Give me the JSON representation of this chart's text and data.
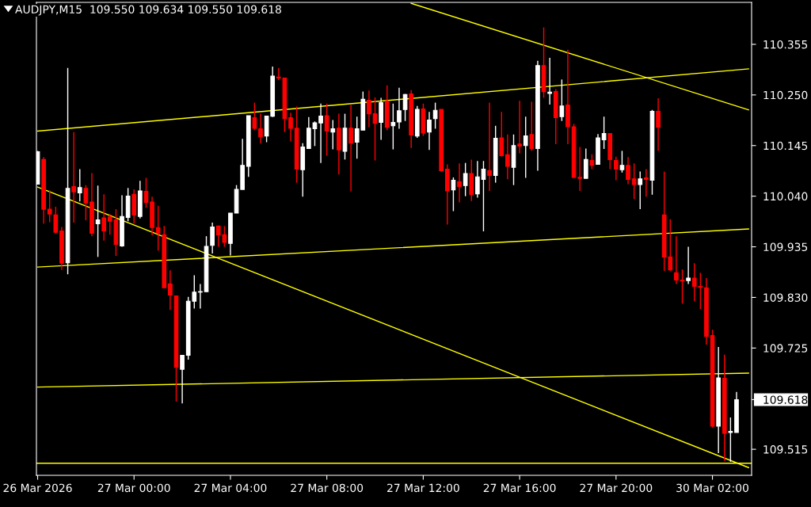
{
  "chart_data": {
    "type": "candlestick",
    "title": "AUDJPY,M15  109.550 109.634 109.550 109.618",
    "categories": [
      "26 Mar 2026",
      null,
      null,
      null,
      null,
      null,
      null,
      null,
      null,
      null,
      null,
      null,
      null,
      null,
      null,
      null,
      "27 Mar 00:00",
      null,
      null,
      null,
      null,
      null,
      null,
      null,
      null,
      null,
      null,
      null,
      null,
      null,
      null,
      null,
      "27 Mar 04:00",
      null,
      null,
      null,
      null,
      null,
      null,
      null,
      null,
      null,
      null,
      null,
      null,
      null,
      null,
      null,
      "27 Mar 08:00",
      null,
      null,
      null,
      null,
      null,
      null,
      null,
      null,
      null,
      null,
      null,
      null,
      null,
      null,
      null,
      "27 Mar 12:00",
      null,
      null,
      null,
      null,
      null,
      null,
      null,
      null,
      null,
      null,
      null,
      null,
      null,
      null,
      null,
      "27 Mar 16:00",
      null,
      null,
      null,
      null,
      null,
      null,
      null,
      null,
      null,
      null,
      null,
      null,
      null,
      null,
      null,
      "27 Mar 20:00",
      null,
      null,
      null,
      null,
      null,
      null,
      null,
      null,
      null,
      null,
      null,
      null,
      null,
      null,
      null,
      "30 Mar 02:00",
      null,
      null,
      null,
      null,
      null,
      null
    ],
    "ohlc": [
      [
        110.065,
        110.134,
        110.065,
        110.132
      ],
      [
        110.116,
        110.121,
        109.983,
        110.013
      ],
      [
        110.013,
        110.052,
        109.986,
        110.003
      ],
      [
        110.001,
        110.018,
        109.963,
        109.965
      ],
      [
        109.968,
        109.976,
        109.887,
        109.901
      ],
      [
        109.902,
        110.306,
        109.878,
        110.056
      ],
      [
        110.06,
        110.173,
        109.985,
        110.049
      ],
      [
        110.047,
        110.096,
        110.029,
        110.058
      ],
      [
        110.056,
        110.063,
        109.99,
        110.026
      ],
      [
        110.028,
        110.088,
        109.957,
        109.963
      ],
      [
        109.983,
        110.062,
        109.914,
        109.991
      ],
      [
        109.995,
        110.044,
        109.948,
        109.968
      ],
      [
        109.997,
        110.003,
        109.96,
        109.988
      ],
      [
        109.991,
        110.013,
        109.916,
        109.94
      ],
      [
        109.937,
        110.042,
        109.935,
        109.998
      ],
      [
        109.996,
        110.057,
        109.988,
        110.04
      ],
      [
        110.044,
        110.054,
        109.983,
        110.001
      ],
      [
        109.998,
        110.072,
        109.994,
        110.051
      ],
      [
        110.05,
        110.078,
        110.016,
        110.027
      ],
      [
        110.028,
        110.039,
        109.959,
        109.975
      ],
      [
        109.975,
        110.02,
        109.927,
        109.963
      ],
      [
        109.96,
        109.978,
        109.85,
        109.85
      ],
      [
        109.858,
        109.886,
        109.804,
        109.835
      ],
      [
        109.833,
        109.833,
        109.614,
        109.685
      ],
      [
        109.681,
        109.71,
        109.61,
        109.71
      ],
      [
        109.71,
        109.831,
        109.701,
        109.822
      ],
      [
        109.822,
        109.876,
        109.807,
        109.841
      ],
      [
        109.841,
        109.858,
        109.807,
        109.842
      ],
      [
        109.842,
        109.957,
        109.842,
        109.936
      ],
      [
        109.938,
        109.985,
        109.921,
        109.976
      ],
      [
        109.978,
        109.978,
        109.935,
        109.96
      ],
      [
        109.96,
        109.978,
        109.935,
        109.944
      ],
      [
        109.942,
        110.005,
        109.917,
        110.005
      ],
      [
        110.005,
        110.063,
        110.005,
        110.054
      ],
      [
        110.054,
        110.159,
        110.054,
        110.104
      ],
      [
        110.102,
        110.207,
        110.08,
        110.207
      ],
      [
        110.203,
        110.234,
        110.177,
        110.181
      ],
      [
        110.18,
        110.211,
        110.149,
        110.163
      ],
      [
        110.165,
        110.207,
        110.152,
        110.206
      ],
      [
        110.206,
        110.309,
        110.204,
        110.289
      ],
      [
        110.287,
        110.306,
        110.281,
        110.285
      ],
      [
        110.285,
        110.285,
        110.173,
        110.201
      ],
      [
        110.203,
        110.213,
        110.154,
        110.181
      ],
      [
        110.181,
        110.226,
        110.068,
        110.096
      ],
      [
        110.095,
        110.15,
        110.039,
        110.142
      ],
      [
        110.139,
        110.204,
        110.139,
        110.181
      ],
      [
        110.18,
        110.195,
        110.144,
        110.192
      ],
      [
        110.192,
        110.232,
        110.109,
        110.206
      ],
      [
        110.207,
        110.232,
        110.124,
        110.175
      ],
      [
        110.173,
        110.198,
        110.137,
        110.18
      ],
      [
        110.181,
        110.211,
        110.085,
        110.136
      ],
      [
        110.133,
        110.211,
        110.116,
        110.181
      ],
      [
        110.181,
        110.229,
        110.05,
        110.15
      ],
      [
        110.152,
        110.205,
        110.118,
        110.18
      ],
      [
        110.177,
        110.257,
        110.177,
        110.241
      ],
      [
        110.239,
        110.259,
        110.183,
        110.211
      ],
      [
        110.211,
        110.245,
        110.114,
        110.191
      ],
      [
        110.193,
        110.244,
        110.157,
        110.234
      ],
      [
        110.237,
        110.27,
        110.177,
        110.183
      ],
      [
        110.186,
        110.232,
        110.137,
        110.193
      ],
      [
        110.194,
        110.265,
        110.18,
        110.217
      ],
      [
        110.22,
        110.252,
        110.196,
        110.251
      ],
      [
        110.252,
        110.26,
        110.14,
        110.167
      ],
      [
        110.165,
        110.227,
        110.161,
        110.22
      ],
      [
        110.221,
        110.232,
        110.165,
        110.171
      ],
      [
        110.173,
        110.215,
        110.136,
        110.198
      ],
      [
        110.201,
        110.234,
        110.18,
        110.218
      ],
      [
        110.22,
        110.22,
        110.091,
        110.093
      ],
      [
        110.096,
        110.106,
        109.981,
        110.051
      ],
      [
        110.053,
        110.079,
        110.009,
        110.073
      ],
      [
        110.07,
        110.108,
        110.027,
        110.06
      ],
      [
        110.062,
        110.109,
        110.04,
        110.087
      ],
      [
        110.087,
        110.116,
        110.03,
        110.043
      ],
      [
        110.045,
        110.113,
        110.037,
        110.08
      ],
      [
        110.075,
        110.113,
        109.967,
        110.096
      ],
      [
        110.093,
        110.234,
        110.051,
        110.083
      ],
      [
        110.083,
        110.186,
        110.068,
        110.16
      ],
      [
        110.161,
        110.215,
        110.122,
        110.124
      ],
      [
        110.126,
        110.168,
        110.075,
        110.102
      ],
      [
        110.1,
        110.168,
        110.063,
        110.145
      ],
      [
        110.148,
        110.238,
        110.129,
        110.144
      ],
      [
        110.145,
        110.205,
        110.078,
        110.165
      ],
      [
        110.168,
        110.236,
        110.134,
        110.139
      ],
      [
        110.139,
        110.321,
        110.093,
        110.311
      ],
      [
        110.311,
        110.39,
        110.244,
        110.257
      ],
      [
        110.253,
        110.327,
        110.23,
        110.256
      ],
      [
        110.257,
        110.262,
        110.148,
        110.203
      ],
      [
        110.205,
        110.282,
        110.196,
        110.227
      ],
      [
        110.229,
        110.344,
        110.148,
        110.184
      ],
      [
        110.184,
        110.19,
        110.078,
        110.079
      ],
      [
        110.079,
        110.142,
        110.051,
        110.077
      ],
      [
        110.077,
        110.139,
        110.077,
        110.116
      ],
      [
        110.114,
        110.127,
        110.096,
        110.104
      ],
      [
        110.106,
        110.169,
        110.106,
        110.161
      ],
      [
        110.157,
        110.205,
        110.138,
        110.17
      ],
      [
        110.17,
        110.17,
        110.096,
        110.116
      ],
      [
        110.114,
        110.122,
        110.073,
        110.096
      ],
      [
        110.095,
        110.134,
        110.089,
        110.104
      ],
      [
        110.104,
        110.121,
        110.065,
        110.075
      ],
      [
        110.076,
        110.108,
        110.034,
        110.064
      ],
      [
        110.064,
        110.091,
        110.013,
        110.076
      ],
      [
        110.078,
        110.096,
        110.039,
        110.075
      ],
      [
        110.073,
        110.219,
        110.043,
        110.216
      ],
      [
        110.216,
        110.243,
        110.134,
        110.183
      ],
      [
        110.001,
        110.091,
        109.885,
        109.914
      ],
      [
        109.914,
        109.992,
        109.885,
        109.887
      ],
      [
        109.881,
        109.957,
        109.858,
        109.866
      ],
      [
        109.866,
        109.888,
        109.817,
        109.864
      ],
      [
        109.865,
        109.935,
        109.858,
        109.87
      ],
      [
        109.87,
        109.901,
        109.822,
        109.853
      ],
      [
        109.853,
        109.881,
        109.806,
        109.851
      ],
      [
        109.85,
        109.87,
        109.732,
        109.749
      ],
      [
        109.751,
        109.763,
        109.56,
        109.563
      ],
      [
        109.563,
        109.727,
        109.507,
        109.663
      ],
      [
        109.662,
        109.711,
        109.491,
        109.548
      ],
      [
        109.55,
        109.581,
        109.489,
        109.552
      ],
      [
        109.55,
        109.634,
        109.55,
        109.618
      ],
      null,
      null
    ],
    "colors": [
      "#ffffff",
      "#ff0000",
      "#ff0000",
      "#ff0000",
      "#ff0000",
      "#ffffff",
      "#ff0000",
      "#ffffff",
      "#ff0000",
      "#ff0000",
      "#ffffff",
      "#ff0000",
      "#ff0000",
      "#ff0000",
      "#ffffff",
      "#ffffff",
      "#ff0000",
      "#ffffff",
      "#ff0000",
      "#ff0000",
      "#ff0000",
      "#ff0000",
      "#ff0000",
      "#ff0000",
      "#ffffff",
      "#ffffff",
      "#ffffff",
      "#ffffff",
      "#ffffff",
      "#ffffff",
      "#ff0000",
      "#ff0000",
      "#ffffff",
      "#ffffff",
      "#ffffff",
      "#ffffff",
      "#ff0000",
      "#ff0000",
      "#ffffff",
      "#ffffff",
      "#ff0000",
      "#ff0000",
      "#ff0000",
      "#ff0000",
      "#ffffff",
      "#ffffff",
      "#ffffff",
      "#ffffff",
      "#ff0000",
      "#ffffff",
      "#ff0000",
      "#ffffff",
      "#ff0000",
      "#ffffff",
      "#ffffff",
      "#ff0000",
      "#ff0000",
      "#ffffff",
      "#ff0000",
      "#ffffff",
      "#ffffff",
      "#ffffff",
      "#ff0000",
      "#ffffff",
      "#ff0000",
      "#ffffff",
      "#ffffff",
      "#ff0000",
      "#ff0000",
      "#ffffff",
      "#ff0000",
      "#ffffff",
      "#ff0000",
      "#ffffff",
      "#ffffff",
      "#ff0000",
      "#ffffff",
      "#ff0000",
      "#ff0000",
      "#ffffff",
      "#ff0000",
      "#ffffff",
      "#ff0000",
      "#ffffff",
      "#ff0000",
      "#ffffff",
      "#ff0000",
      "#ffffff",
      "#ff0000",
      "#ff0000",
      "#ff0000",
      "#ffffff",
      "#ff0000",
      "#ffffff",
      "#ffffff",
      "#ff0000",
      "#ff0000",
      "#ffffff",
      "#ff0000",
      "#ff0000",
      "#ffffff",
      "#ff0000",
      "#ffffff",
      "#ff0000",
      "#ff0000",
      "#ff0000",
      "#ff0000",
      "#ff0000",
      "#ffffff",
      "#ff0000",
      "#ff0000",
      "#ff0000",
      "#ff0000",
      "#ffffff",
      "#ff0000",
      "#ffffff",
      "#ffffff",
      null,
      null
    ],
    "series": [
      {
        "type": "line",
        "color": "#ffff00",
        "values": [
          110.175,
          null,
          null,
          null,
          null,
          null,
          null,
          null,
          null,
          null,
          null,
          null,
          null,
          null,
          null,
          null,
          null,
          null,
          null,
          null,
          null,
          null,
          null,
          null,
          null,
          null,
          null,
          null,
          null,
          null,
          null,
          null,
          null,
          null,
          null,
          null,
          null,
          null,
          null,
          null,
          null,
          null,
          null,
          null,
          null,
          null,
          null,
          null,
          null,
          null,
          null,
          null,
          null,
          null,
          null,
          null,
          null,
          null,
          null,
          null,
          null,
          null,
          null,
          null,
          null,
          null,
          null,
          null,
          null,
          null,
          null,
          null,
          null,
          null,
          null,
          null,
          null,
          null,
          null,
          null,
          null,
          null,
          null,
          null,
          null,
          null,
          null,
          null,
          null,
          null,
          null,
          null,
          null,
          null,
          null,
          null,
          null,
          null,
          null,
          null,
          null,
          null,
          null,
          null,
          null,
          null,
          null,
          null,
          null,
          null,
          null,
          null,
          null,
          null,
          null,
          null,
          null,
          null,
          110.304
        ]
      },
      {
        "type": "line",
        "color": "#ffff00",
        "values": [
          null,
          null,
          null,
          null,
          null,
          null,
          null,
          null,
          null,
          null,
          null,
          null,
          null,
          null,
          null,
          null,
          null,
          null,
          null,
          null,
          null,
          null,
          null,
          null,
          null,
          null,
          null,
          null,
          null,
          null,
          null,
          null,
          null,
          null,
          null,
          null,
          null,
          null,
          null,
          null,
          null,
          null,
          null,
          null,
          null,
          null,
          null,
          null,
          null,
          null,
          null,
          null,
          null,
          null,
          null,
          null,
          null,
          null,
          null,
          null,
          null,
          null,
          110.44,
          null,
          null,
          null,
          null,
          null,
          null,
          null,
          null,
          null,
          null,
          null,
          null,
          null,
          null,
          null,
          null,
          null,
          null,
          null,
          null,
          null,
          null,
          null,
          null,
          null,
          null,
          null,
          null,
          null,
          null,
          null,
          null,
          null,
          null,
          null,
          null,
          null,
          null,
          null,
          null,
          null,
          null,
          null,
          null,
          null,
          null,
          null,
          null,
          null,
          null,
          null,
          null,
          null,
          null,
          null,
          110.219
        ]
      },
      {
        "type": "line",
        "color": "#ffff00",
        "values": [
          110.059,
          null,
          null,
          null,
          null,
          null,
          null,
          null,
          null,
          null,
          null,
          null,
          null,
          null,
          null,
          null,
          null,
          null,
          null,
          null,
          null,
          null,
          null,
          null,
          null,
          null,
          null,
          null,
          null,
          null,
          null,
          null,
          null,
          null,
          null,
          null,
          null,
          null,
          null,
          null,
          null,
          null,
          null,
          null,
          null,
          null,
          null,
          null,
          null,
          null,
          null,
          null,
          null,
          null,
          null,
          null,
          null,
          null,
          null,
          null,
          null,
          null,
          null,
          null,
          null,
          null,
          null,
          null,
          null,
          null,
          null,
          null,
          null,
          null,
          null,
          null,
          null,
          null,
          null,
          null,
          null,
          null,
          null,
          null,
          null,
          null,
          null,
          null,
          null,
          null,
          null,
          null,
          null,
          null,
          null,
          null,
          null,
          null,
          null,
          null,
          null,
          null,
          null,
          null,
          null,
          null,
          null,
          null,
          null,
          null,
          null,
          null,
          null,
          null,
          null,
          null,
          null,
          null,
          109.477
        ]
      },
      {
        "type": "line",
        "color": "#ffff00",
        "values": [
          109.893,
          null,
          null,
          null,
          null,
          null,
          null,
          null,
          null,
          null,
          null,
          null,
          null,
          null,
          null,
          null,
          null,
          null,
          null,
          null,
          null,
          null,
          null,
          null,
          null,
          null,
          null,
          null,
          null,
          null,
          null,
          null,
          null,
          null,
          null,
          null,
          null,
          null,
          null,
          null,
          null,
          null,
          null,
          null,
          null,
          null,
          null,
          null,
          null,
          null,
          null,
          null,
          null,
          null,
          null,
          null,
          null,
          null,
          null,
          null,
          null,
          null,
          null,
          null,
          null,
          null,
          null,
          null,
          null,
          null,
          null,
          null,
          null,
          null,
          null,
          null,
          null,
          null,
          null,
          null,
          null,
          null,
          null,
          null,
          null,
          null,
          null,
          null,
          null,
          null,
          null,
          null,
          null,
          null,
          null,
          null,
          null,
          null,
          null,
          null,
          null,
          null,
          null,
          null,
          null,
          null,
          null,
          null,
          null,
          null,
          null,
          null,
          null,
          null,
          null,
          null,
          null,
          null,
          109.972
        ]
      },
      {
        "type": "line",
        "color": "#ffff00",
        "values": [
          109.644,
          null,
          null,
          null,
          null,
          null,
          null,
          null,
          null,
          null,
          null,
          null,
          null,
          null,
          null,
          null,
          null,
          null,
          null,
          null,
          null,
          null,
          null,
          null,
          null,
          null,
          null,
          null,
          null,
          null,
          null,
          null,
          null,
          null,
          null,
          null,
          null,
          null,
          null,
          null,
          null,
          null,
          null,
          null,
          null,
          null,
          null,
          null,
          null,
          null,
          null,
          null,
          null,
          null,
          null,
          null,
          null,
          null,
          null,
          null,
          null,
          null,
          null,
          null,
          null,
          null,
          null,
          null,
          null,
          null,
          null,
          null,
          null,
          null,
          null,
          null,
          null,
          null,
          null,
          null,
          null,
          null,
          null,
          null,
          null,
          null,
          null,
          null,
          null,
          null,
          null,
          null,
          null,
          null,
          null,
          null,
          null,
          null,
          null,
          null,
          null,
          null,
          null,
          null,
          null,
          null,
          null,
          null,
          null,
          null,
          null,
          null,
          null,
          null,
          null,
          null,
          null,
          null,
          109.673
        ]
      }
    ],
    "ref_lines": [
      {
        "axis": "y",
        "value": 109.486,
        "color": "#ffff00"
      }
    ],
    "ylim": [
      109.461,
      110.442
    ],
    "yticks": [
      {
        "value": 110.355,
        "label": "110.355"
      },
      {
        "value": 110.25,
        "label": "110.250"
      },
      {
        "value": 110.145,
        "label": "110.145"
      },
      {
        "value": 110.04,
        "label": "110.040"
      },
      {
        "value": 109.935,
        "label": "109.935"
      },
      {
        "value": 109.83,
        "label": "109.830"
      },
      {
        "value": 109.725,
        "label": "109.725"
      },
      {
        "value": 109.618,
        "label": "109.618"
      },
      {
        "value": 109.515,
        "label": "109.515"
      }
    ],
    "grid": false
  }
}
